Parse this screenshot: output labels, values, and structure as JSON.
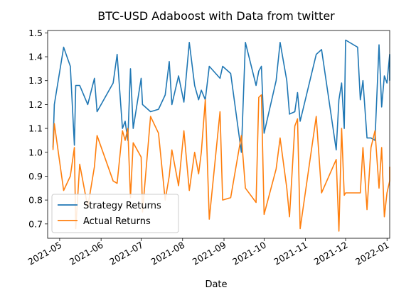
{
  "chart_data": {
    "type": "line",
    "title": "BTC-USD Adaboost with Data from twitter",
    "xlabel": "Date",
    "ylabel": "",
    "xlim": [
      "2021-04-22",
      "2022-01-03"
    ],
    "ylim": [
      0.64,
      1.51
    ],
    "grid": false,
    "legend_position": "lower-left",
    "x_ticks": [
      {
        "date": "2021-05-01",
        "label": "2021-05"
      },
      {
        "date": "2021-06-01",
        "label": "2021-06"
      },
      {
        "date": "2021-07-01",
        "label": "2021-07"
      },
      {
        "date": "2021-08-01",
        "label": "2021-08"
      },
      {
        "date": "2021-09-01",
        "label": "2021-09"
      },
      {
        "date": "2021-10-01",
        "label": "2021-10"
      },
      {
        "date": "2021-11-01",
        "label": "2021-11"
      },
      {
        "date": "2021-12-01",
        "label": "2021-12"
      },
      {
        "date": "2022-01-01",
        "label": "2022-01"
      }
    ],
    "y_ticks": [
      {
        "value": 0.7,
        "label": "0.7"
      },
      {
        "value": 0.8,
        "label": "0.8"
      },
      {
        "value": 0.9,
        "label": "0.9"
      },
      {
        "value": 1.0,
        "label": "1.0"
      },
      {
        "value": 1.1,
        "label": "1.1"
      },
      {
        "value": 1.2,
        "label": "1.2"
      },
      {
        "value": 1.3,
        "label": "1.3"
      },
      {
        "value": 1.4,
        "label": "1.4"
      },
      {
        "value": 1.5,
        "label": "1.5"
      }
    ],
    "series": [
      {
        "name": "Strategy Returns",
        "color": "#1f77b4",
        "points": [
          [
            "2021-04-26",
            1.02
          ],
          [
            "2021-04-27",
            1.2
          ],
          [
            "2021-05-04",
            1.44
          ],
          [
            "2021-05-09",
            1.36
          ],
          [
            "2021-05-12",
            1.03
          ],
          [
            "2021-05-13",
            1.28
          ],
          [
            "2021-05-16",
            1.28
          ],
          [
            "2021-05-22",
            1.2
          ],
          [
            "2021-05-27",
            1.31
          ],
          [
            "2021-05-29",
            1.17
          ],
          [
            "2021-06-10",
            1.29
          ],
          [
            "2021-06-13",
            1.41
          ],
          [
            "2021-06-17",
            1.1
          ],
          [
            "2021-06-19",
            1.13
          ],
          [
            "2021-06-21",
            1.05
          ],
          [
            "2021-06-23",
            1.35
          ],
          [
            "2021-06-25",
            1.1
          ],
          [
            "2021-07-01",
            1.31
          ],
          [
            "2021-07-02",
            1.2
          ],
          [
            "2021-07-08",
            1.17
          ],
          [
            "2021-07-14",
            1.18
          ],
          [
            "2021-07-19",
            1.24
          ],
          [
            "2021-07-22",
            1.38
          ],
          [
            "2021-07-24",
            1.2
          ],
          [
            "2021-07-29",
            1.32
          ],
          [
            "2021-08-02",
            1.21
          ],
          [
            "2021-08-06",
            1.46
          ],
          [
            "2021-08-10",
            1.28
          ],
          [
            "2021-08-13",
            1.22
          ],
          [
            "2021-08-15",
            1.26
          ],
          [
            "2021-08-18",
            1.22
          ],
          [
            "2021-08-21",
            1.36
          ],
          [
            "2021-08-29",
            1.31
          ],
          [
            "2021-08-31",
            1.36
          ],
          [
            "2021-09-06",
            1.33
          ],
          [
            "2021-09-14",
            1.0
          ],
          [
            "2021-09-17",
            1.46
          ],
          [
            "2021-09-25",
            1.28
          ],
          [
            "2021-09-27",
            1.34
          ],
          [
            "2021-09-29",
            1.36
          ],
          [
            "2021-10-01",
            1.08
          ],
          [
            "2021-10-10",
            1.3
          ],
          [
            "2021-10-13",
            1.46
          ],
          [
            "2021-10-18",
            1.3
          ],
          [
            "2021-10-20",
            1.16
          ],
          [
            "2021-10-24",
            1.17
          ],
          [
            "2021-10-26",
            1.25
          ],
          [
            "2021-10-28",
            1.13
          ],
          [
            "2021-11-09",
            1.41
          ],
          [
            "2021-11-13",
            1.43
          ],
          [
            "2021-11-24",
            1.01
          ],
          [
            "2021-11-26",
            1.22
          ],
          [
            "2021-11-28",
            1.29
          ],
          [
            "2021-11-30",
            1.1
          ],
          [
            "2021-12-01",
            1.47
          ],
          [
            "2021-12-10",
            1.44
          ],
          [
            "2021-12-12",
            1.22
          ],
          [
            "2021-12-14",
            1.3
          ],
          [
            "2021-12-17",
            1.06
          ],
          [
            "2021-12-20",
            1.06
          ],
          [
            "2021-12-23",
            1.05
          ],
          [
            "2021-12-26",
            1.45
          ],
          [
            "2021-12-28",
            1.19
          ],
          [
            "2021-12-30",
            1.32
          ],
          [
            "2022-01-01",
            1.29
          ],
          [
            "2022-01-05",
            1.41
          ],
          [
            "2022-01-09",
            1.38
          ],
          [
            "2022-01-15",
            1.3
          ]
        ]
      },
      {
        "name": "Actual Returns",
        "color": "#ff7f0e",
        "points": [
          [
            "2021-04-26",
            1.01
          ],
          [
            "2021-04-27",
            1.12
          ],
          [
            "2021-05-04",
            0.84
          ],
          [
            "2021-05-09",
            0.9
          ],
          [
            "2021-05-12",
            1.02
          ],
          [
            "2021-05-13",
            0.68
          ],
          [
            "2021-05-16",
            0.95
          ],
          [
            "2021-05-22",
            0.77
          ],
          [
            "2021-05-27",
            0.94
          ],
          [
            "2021-05-29",
            1.07
          ],
          [
            "2021-06-10",
            0.88
          ],
          [
            "2021-06-13",
            0.87
          ],
          [
            "2021-06-17",
            1.09
          ],
          [
            "2021-06-19",
            1.05
          ],
          [
            "2021-06-21",
            1.1
          ],
          [
            "2021-06-23",
            0.81
          ],
          [
            "2021-06-25",
            1.04
          ],
          [
            "2021-07-01",
            0.98
          ],
          [
            "2021-07-02",
            0.75
          ],
          [
            "2021-07-08",
            1.15
          ],
          [
            "2021-07-14",
            1.08
          ],
          [
            "2021-07-19",
            0.8
          ],
          [
            "2021-07-22",
            0.9
          ],
          [
            "2021-07-24",
            1.01
          ],
          [
            "2021-07-29",
            0.86
          ],
          [
            "2021-08-02",
            1.09
          ],
          [
            "2021-08-06",
            0.84
          ],
          [
            "2021-08-10",
            1.0
          ],
          [
            "2021-08-13",
            0.91
          ],
          [
            "2021-08-15",
            1.0
          ],
          [
            "2021-08-18",
            1.22
          ],
          [
            "2021-08-21",
            0.72
          ],
          [
            "2021-08-29",
            1.17
          ],
          [
            "2021-08-31",
            0.8
          ],
          [
            "2021-09-06",
            0.81
          ],
          [
            "2021-09-14",
            1.07
          ],
          [
            "2021-09-17",
            0.85
          ],
          [
            "2021-09-25",
            0.79
          ],
          [
            "2021-09-27",
            1.23
          ],
          [
            "2021-09-29",
            1.24
          ],
          [
            "2021-10-01",
            0.74
          ],
          [
            "2021-10-10",
            0.93
          ],
          [
            "2021-10-13",
            1.06
          ],
          [
            "2021-10-18",
            0.85
          ],
          [
            "2021-10-20",
            0.73
          ],
          [
            "2021-10-24",
            1.11
          ],
          [
            "2021-10-26",
            1.14
          ],
          [
            "2021-10-28",
            0.68
          ],
          [
            "2021-11-09",
            1.15
          ],
          [
            "2021-11-13",
            0.83
          ],
          [
            "2021-11-24",
            0.97
          ],
          [
            "2021-11-26",
            0.67
          ],
          [
            "2021-11-28",
            1.1
          ],
          [
            "2021-11-30",
            0.82
          ],
          [
            "2021-12-01",
            0.83
          ],
          [
            "2021-12-10",
            0.83
          ],
          [
            "2021-12-12",
            0.83
          ],
          [
            "2021-12-14",
            1.02
          ],
          [
            "2021-12-17",
            0.76
          ],
          [
            "2021-12-20",
            1.02
          ],
          [
            "2021-12-23",
            1.09
          ],
          [
            "2021-12-26",
            0.85
          ],
          [
            "2021-12-28",
            1.02
          ],
          [
            "2021-12-30",
            0.73
          ],
          [
            "2022-01-01",
            0.83
          ],
          [
            "2022-01-05",
            0.88
          ],
          [
            "2022-01-09",
            0.9
          ],
          [
            "2022-01-15",
            0.94
          ]
        ]
      }
    ]
  }
}
